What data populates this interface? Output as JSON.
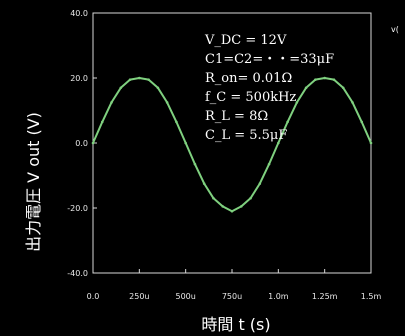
{
  "chart_data": {
    "type": "line",
    "xlabel": "時間 t (s)",
    "ylabel": "出力電圧 V out (V)",
    "x_ticks": [
      "0.0",
      "250u",
      "500u",
      "750u",
      "1.0m",
      "1.25m",
      "1.5m"
    ],
    "y_ticks": [
      "40.0",
      "20.0",
      "0.0",
      "-20.0",
      "-40.0"
    ],
    "xlim": [
      0,
      0.0015
    ],
    "ylim": [
      -40,
      40
    ],
    "grid": false,
    "line_color": "#7fd07f",
    "series": [
      {
        "x": [
          0,
          5e-05,
          0.0001,
          0.00015,
          0.0002,
          0.00025,
          0.0003,
          0.00035,
          0.0004,
          0.00045,
          0.0005,
          0.00055,
          0.0006,
          0.00065,
          0.0007,
          0.00075,
          0.0008,
          0.00085,
          0.0009,
          0.00095,
          0.001,
          0.00105,
          0.0011,
          0.00115,
          0.0012,
          0.00125,
          0.0013,
          0.00135,
          0.0014,
          0.00145,
          0.0015
        ],
        "values": [
          0,
          6.5,
          12.5,
          17,
          19.5,
          20,
          19.5,
          17,
          12.5,
          6.5,
          0,
          -6.5,
          -12.5,
          -17,
          -19.5,
          -21,
          -19.5,
          -17,
          -12.5,
          -6.5,
          0,
          6.5,
          12.5,
          17,
          19.5,
          20,
          19.5,
          17,
          12.5,
          6.5,
          0
        ]
      }
    ],
    "annotations": [
      "V_DC = 12V",
      "C1=C2=・・=33μF",
      "R_on= 0.01Ω",
      "f_C = 500kHz",
      "R_L = 8Ω",
      "C_L = 5.5μF"
    ],
    "edge_label": "v("
  }
}
